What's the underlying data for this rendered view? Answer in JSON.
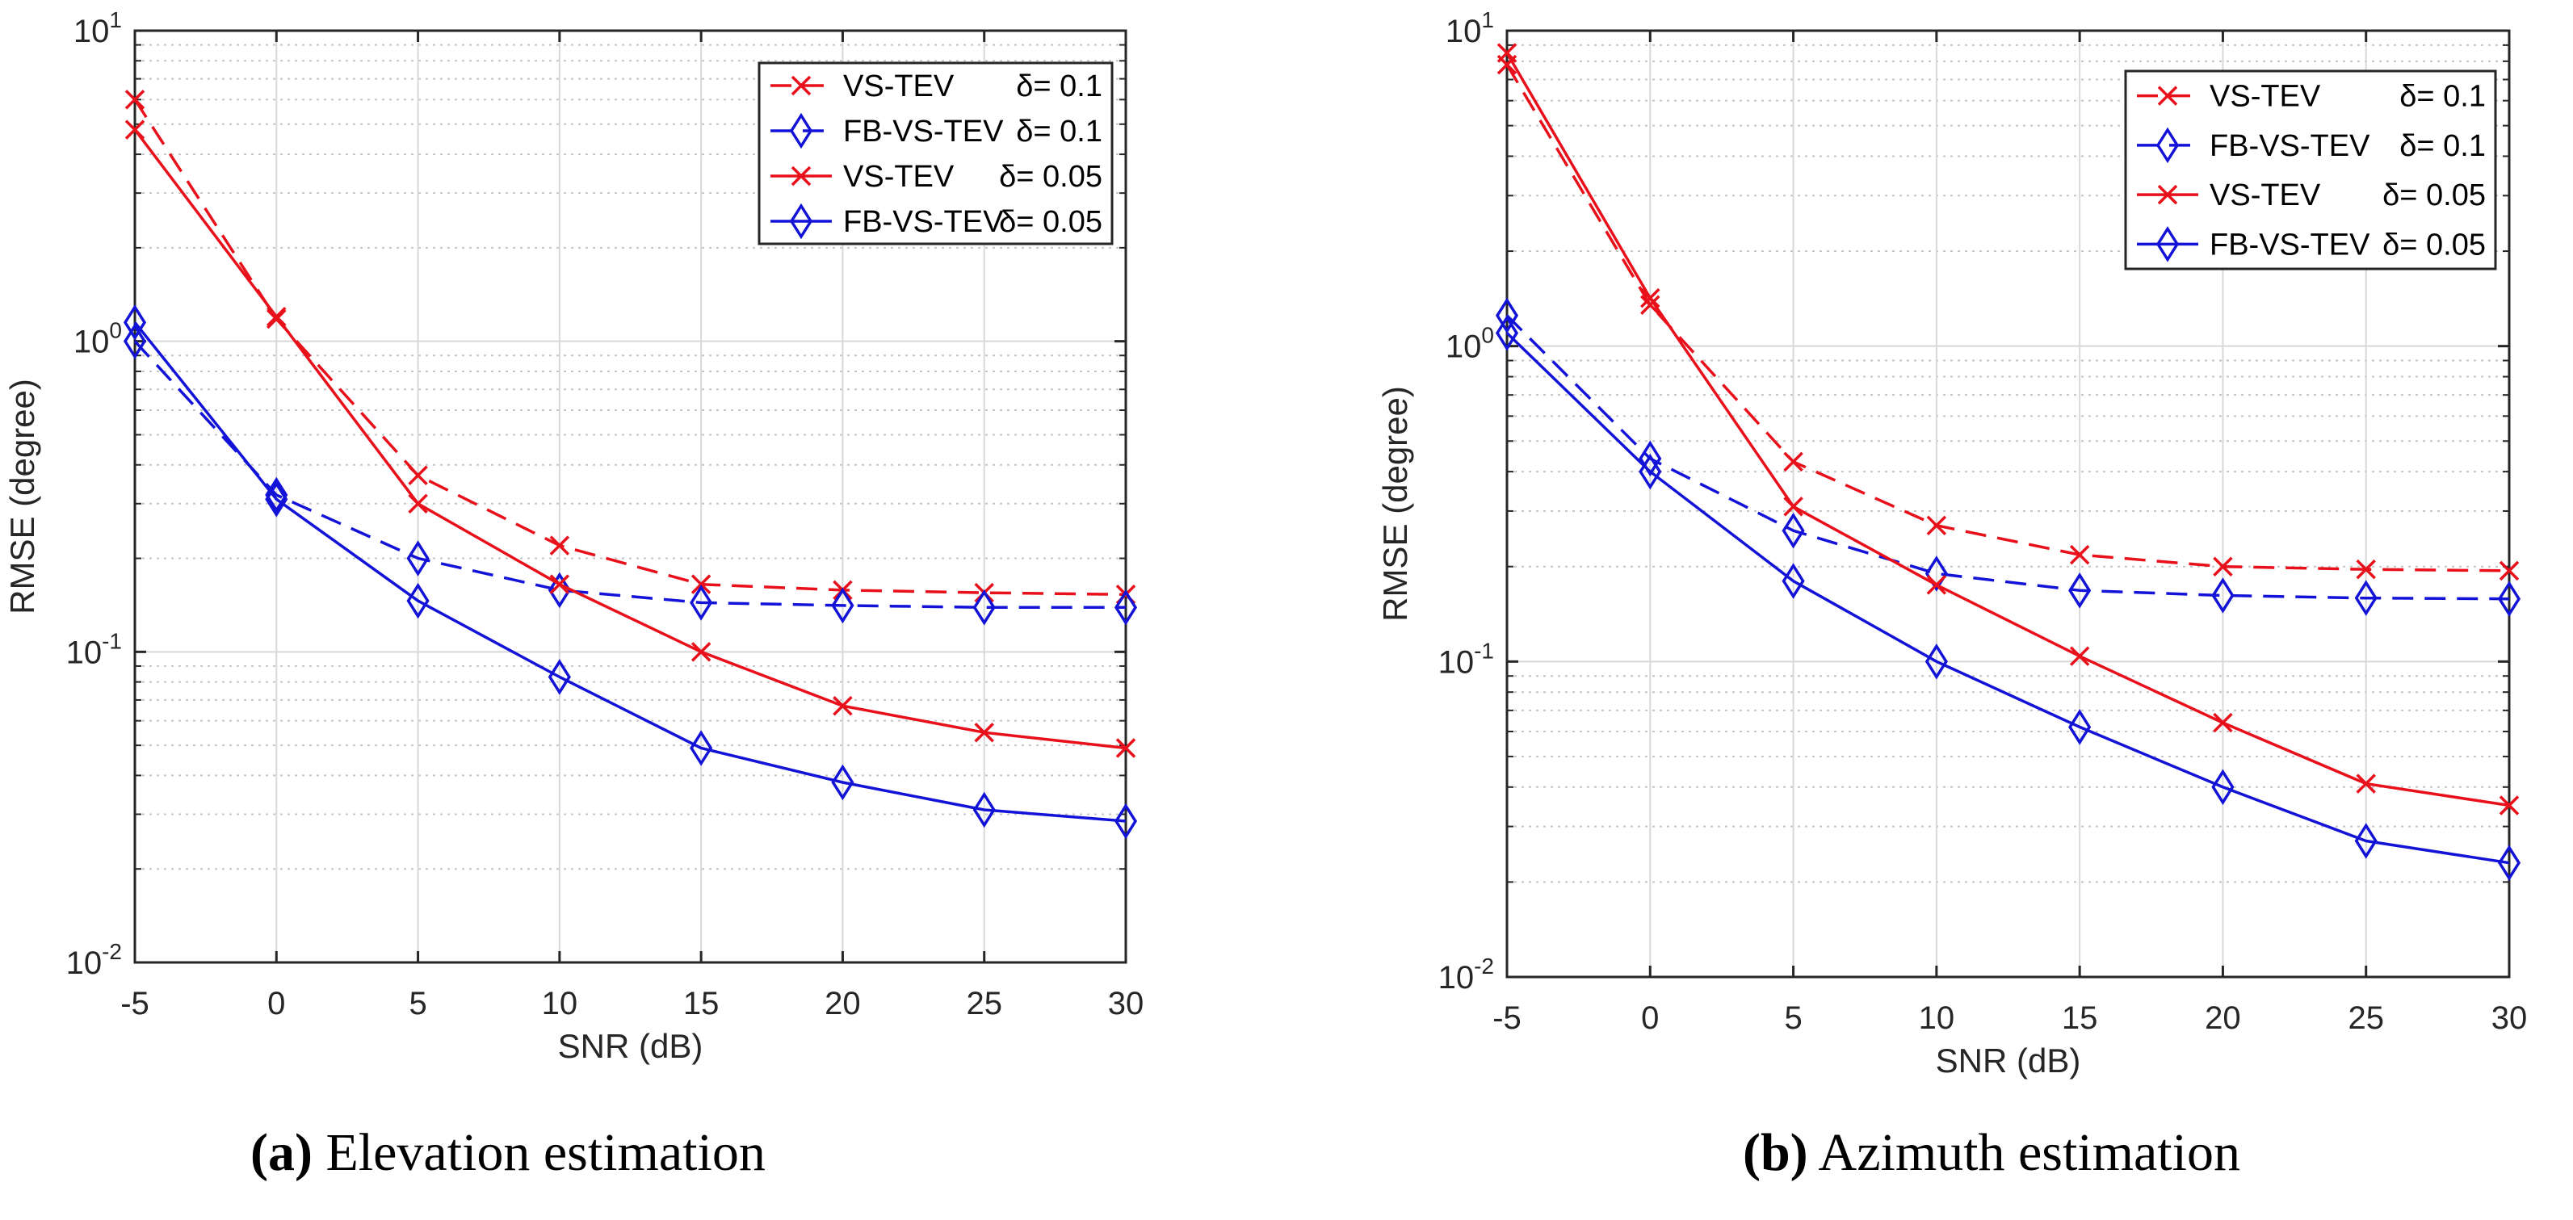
{
  "chart_data": [
    {
      "type": "line",
      "panel_label": "(a)",
      "caption": "Elevation estimation",
      "xlabel": "SNR (dB)",
      "ylabel": "RMSE (degree)",
      "yscale": "log",
      "xlim": [
        -5,
        30
      ],
      "ylim": [
        0.01,
        10
      ],
      "xticks": [
        -5,
        0,
        5,
        10,
        15,
        20,
        25,
        30
      ],
      "xtick_labels": [
        "-5",
        "0",
        "5",
        "10",
        "15",
        "20",
        "25",
        "30"
      ],
      "yticks": [
        {
          "base": "10",
          "exp": "-2",
          "value": 0.01
        },
        {
          "base": "10",
          "exp": "-1",
          "value": 0.1
        },
        {
          "base": "10",
          "exp": "0",
          "value": 1
        },
        {
          "base": "10",
          "exp": "1",
          "value": 10
        }
      ],
      "grid": true,
      "legend_position": "top-right",
      "x": [
        -5,
        0,
        5,
        10,
        15,
        20,
        25,
        30
      ],
      "series": [
        {
          "name": "VS-TEV",
          "delta_label": "δ= 0.1",
          "color": "#e8101a",
          "dash": "dashed",
          "marker": "x",
          "values": [
            6.0,
            1.18,
            0.37,
            0.22,
            0.165,
            0.158,
            0.155,
            0.153
          ]
        },
        {
          "name": "FB-VS-TEV",
          "delta_label": "δ= 0.1",
          "color": "#1313d8",
          "dash": "dashed",
          "marker": "diamond",
          "values": [
            1.0,
            0.32,
            0.2,
            0.158,
            0.144,
            0.141,
            0.139,
            0.139
          ]
        },
        {
          "name": "VS-TEV",
          "delta_label": "δ= 0.05",
          "color": "#e8101a",
          "dash": "solid",
          "marker": "x",
          "values": [
            4.8,
            1.2,
            0.3,
            0.165,
            0.1,
            0.067,
            0.055,
            0.049
          ]
        },
        {
          "name": "FB-VS-TEV",
          "delta_label": "δ= 0.05",
          "color": "#1313d8",
          "dash": "solid",
          "marker": "diamond",
          "values": [
            1.15,
            0.31,
            0.146,
            0.083,
            0.049,
            0.038,
            0.031,
            0.0285
          ]
        }
      ]
    },
    {
      "type": "line",
      "panel_label": "(b)",
      "caption": "Azimuth estimation",
      "xlabel": "SNR (dB)",
      "ylabel": "RMSE (degree)",
      "yscale": "log",
      "xlim": [
        -5,
        30
      ],
      "ylim": [
        0.01,
        10
      ],
      "xticks": [
        -5,
        0,
        5,
        10,
        15,
        20,
        25,
        30
      ],
      "xtick_labels": [
        "-5",
        "0",
        "5",
        "10",
        "15",
        "20",
        "25",
        "30"
      ],
      "yticks": [
        {
          "base": "10",
          "exp": "-2",
          "value": 0.01
        },
        {
          "base": "10",
          "exp": "-1",
          "value": 0.1
        },
        {
          "base": "10",
          "exp": "0",
          "value": 1
        },
        {
          "base": "10",
          "exp": "1",
          "value": 10
        }
      ],
      "grid": true,
      "legend_position": "top-right",
      "x": [
        -5,
        0,
        5,
        10,
        15,
        20,
        25,
        30
      ],
      "series": [
        {
          "name": "VS-TEV",
          "delta_label": "δ= 0.1",
          "color": "#e8101a",
          "dash": "dashed",
          "marker": "x",
          "values": [
            7.8,
            1.35,
            0.43,
            0.27,
            0.218,
            0.2,
            0.196,
            0.194
          ]
        },
        {
          "name": "FB-VS-TEV",
          "delta_label": "δ= 0.1",
          "color": "#1313d8",
          "dash": "dashed",
          "marker": "diamond",
          "values": [
            1.25,
            0.44,
            0.26,
            0.19,
            0.168,
            0.162,
            0.159,
            0.158
          ]
        },
        {
          "name": "VS-TEV",
          "delta_label": "δ= 0.05",
          "color": "#e8101a",
          "dash": "solid",
          "marker": "x",
          "values": [
            8.5,
            1.42,
            0.31,
            0.175,
            0.104,
            0.064,
            0.041,
            0.035
          ]
        },
        {
          "name": "FB-VS-TEV",
          "delta_label": "δ= 0.05",
          "color": "#1313d8",
          "dash": "solid",
          "marker": "diamond",
          "values": [
            1.1,
            0.4,
            0.18,
            0.1,
            0.062,
            0.04,
            0.027,
            0.023
          ]
        }
      ]
    }
  ]
}
